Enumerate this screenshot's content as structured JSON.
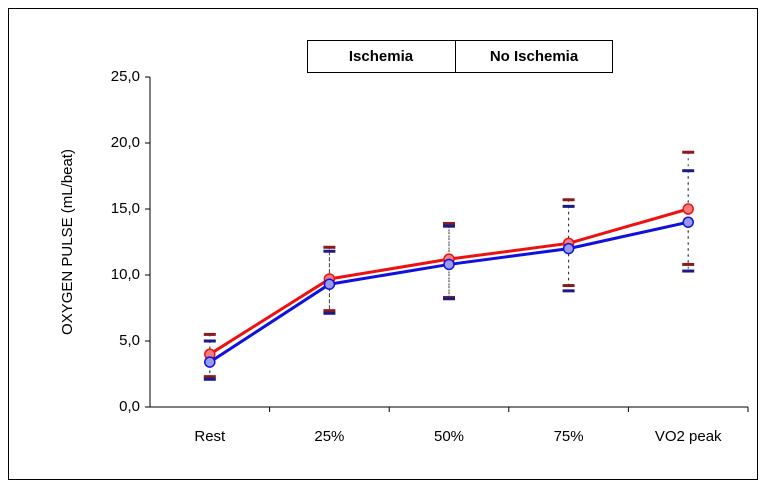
{
  "chart_data": {
    "type": "line",
    "y_label": "OXYGEN PULSE (mL/beat)",
    "categories": [
      "Rest",
      "25%",
      "50%",
      "75%",
      "VO2 peak"
    ],
    "series": [
      {
        "name": "Ischemia",
        "color": "#ee1111",
        "marker_color": "#f08080",
        "bar_color": "#8b1a1a",
        "values": [
          4.0,
          9.7,
          11.2,
          12.4,
          15.0
        ],
        "upper": [
          5.5,
          12.1,
          13.9,
          15.7,
          19.3
        ],
        "lower": [
          2.3,
          7.3,
          8.3,
          9.2,
          10.8
        ]
      },
      {
        "name": "No Ischemia",
        "color": "#1111dd",
        "marker_color": "#9999ee",
        "bar_color": "#1a1a8b",
        "values": [
          3.4,
          9.3,
          10.8,
          12.0,
          14.0
        ],
        "upper": [
          5.0,
          11.8,
          13.7,
          15.2,
          17.9
        ],
        "lower": [
          2.1,
          7.1,
          8.2,
          8.8,
          10.3
        ]
      }
    ],
    "ylim": [
      0,
      25
    ],
    "yticks": [
      {
        "value": 0,
        "label": "0,0"
      },
      {
        "value": 5,
        "label": "5,0"
      },
      {
        "value": 10,
        "label": "10,0"
      },
      {
        "value": 15,
        "label": "15,0"
      },
      {
        "value": 20,
        "label": "20,0"
      },
      {
        "value": 25,
        "label": "25,0"
      }
    ],
    "grid": false
  }
}
